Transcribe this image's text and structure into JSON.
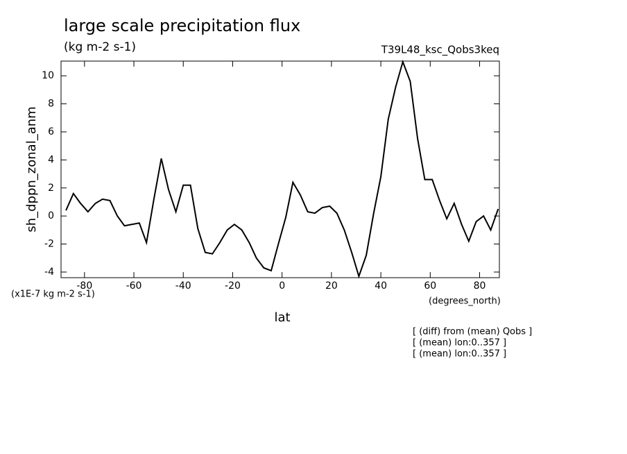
{
  "chart_data": {
    "type": "line",
    "title": "large scale precipitation flux",
    "subtitle": "(kg m-2 s-1)",
    "run_label": "T39L48_ksc_Qobs3keq",
    "y_label": "sh_dppn_zonal_anm",
    "y_units": "(x1E-7 kg m-2 s-1)",
    "x_label": "lat",
    "x_units": "(degrees_north)",
    "notes": [
      "[ (diff) from (mean) Qobs ]",
      "[ (mean) lon:0..357 ]",
      "[ (mean) lon:0..357 ]"
    ],
    "x": [
      -87.5,
      -84.5,
      -81.6,
      -78.6,
      -75.6,
      -72.7,
      -69.7,
      -66.7,
      -63.8,
      -60.8,
      -57.8,
      -54.9,
      -51.9,
      -48.9,
      -46.0,
      -43.0,
      -40.0,
      -37.1,
      -34.1,
      -31.1,
      -28.2,
      -25.2,
      -22.2,
      -19.3,
      -16.3,
      -13.3,
      -10.4,
      -7.4,
      -4.4,
      -1.5,
      1.5,
      4.4,
      7.4,
      10.4,
      13.3,
      16.3,
      19.3,
      22.2,
      25.2,
      28.2,
      31.1,
      34.1,
      37.1,
      40.0,
      43.0,
      46.0,
      48.9,
      51.9,
      54.9,
      57.8,
      60.8,
      63.8,
      66.7,
      69.7,
      72.7,
      75.6,
      78.6,
      81.6,
      84.5,
      87.5
    ],
    "series": [
      {
        "color": "#000000",
        "values": [
          0.4,
          1.6,
          0.9,
          0.3,
          0.9,
          1.2,
          1.1,
          0.0,
          -0.7,
          -0.6,
          -0.5,
          -1.9,
          1.2,
          4.1,
          1.9,
          0.3,
          2.2,
          2.2,
          -0.9,
          -2.6,
          -2.7,
          -1.9,
          -1.0,
          -0.6,
          -1.0,
          -1.9,
          -3.0,
          -3.7,
          -3.9,
          -2.0,
          -0.1,
          2.4,
          1.5,
          0.3,
          0.2,
          0.6,
          0.7,
          0.2,
          -1.0,
          -2.6,
          -4.3,
          -2.8,
          0.2,
          2.8,
          6.9,
          9.2,
          11.0,
          9.6,
          5.5,
          2.6,
          2.6,
          1.1,
          -0.2,
          0.9,
          -0.6,
          -1.8,
          -0.4,
          0.0,
          -1.0,
          0.5
        ]
      }
    ],
    "xlim": [
      -89.5,
      88
    ],
    "ylim": [
      -4.4,
      11.05
    ],
    "xticks": [
      -80,
      -60,
      -40,
      -20,
      0,
      20,
      40,
      60,
      80
    ],
    "yticks": [
      -4,
      -2,
      0,
      2,
      4,
      6,
      8,
      10
    ]
  }
}
